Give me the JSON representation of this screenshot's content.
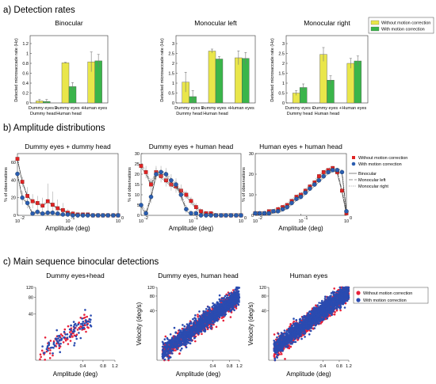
{
  "sections": [
    {
      "label": "a) Detection rates"
    },
    {
      "label": "b) Amplitude distributions"
    },
    {
      "label": "c) Main sequence binocular detections"
    }
  ],
  "chart_data": [
    {
      "type": "bar",
      "panel": "a1",
      "title": "Binocular",
      "ylabel": "Detected microsaccade rate (Hz)",
      "ylim": [
        0,
        1.2
      ],
      "yticks": [
        "0",
        "0.2",
        "0.4",
        "0.6",
        "0.8",
        "1",
        "1.2"
      ],
      "categories": [
        "Dummy eyes +\nDummy head",
        "Dummy eyes +\nHuman head",
        "Human eyes"
      ],
      "series": [
        {
          "name": "Without motion correction",
          "color": "#e9e64a",
          "values": [
            0.04,
            0.81,
            0.83
          ],
          "err": [
            0.03,
            0.01,
            0.2
          ]
        },
        {
          "name": "With motion correction",
          "color": "#3ab54a",
          "values": [
            0.03,
            0.33,
            0.85
          ],
          "err": [
            0.04,
            0.08,
            0.13
          ]
        }
      ]
    },
    {
      "type": "bar",
      "panel": "a2",
      "title": "Monocular left",
      "ylabel": "Detected microsaccade rate (Hz)",
      "ylim": [
        0,
        3
      ],
      "yticks": [
        "0",
        "0.5",
        "1",
        "1.5",
        "2",
        "2.5",
        "3"
      ],
      "categories": [
        "Dummy eyes +\nDummy head",
        "Dummy eyes +\nHuman head",
        "Human eyes"
      ],
      "series": [
        {
          "name": "Without motion correction",
          "color": "#e9e64a",
          "values": [
            1.05,
            2.62,
            2.28
          ],
          "err": [
            0.5,
            0.1,
            0.35
          ]
        },
        {
          "name": "With motion correction",
          "color": "#3ab54a",
          "values": [
            0.32,
            2.22,
            2.25
          ],
          "err": [
            0.3,
            0.12,
            0.3
          ]
        }
      ]
    },
    {
      "type": "bar",
      "panel": "a3",
      "title": "Monocular right",
      "ylabel": "Detected microsaccade rate (Hz)",
      "ylim": [
        0,
        3
      ],
      "yticks": [
        "0",
        "0.5",
        "1",
        "1.5",
        "2",
        "2.5",
        "3"
      ],
      "categories": [
        "Dummy eyes +\nDummy head",
        "Dummy eyes +\nHuman head",
        "Human eyes"
      ],
      "legend": "top-right",
      "series": [
        {
          "name": "Without motion correction",
          "color": "#e9e64a",
          "values": [
            0.5,
            2.45,
            2.0
          ],
          "err": [
            0.12,
            0.35,
            0.25
          ]
        },
        {
          "name": "With motion correction",
          "color": "#3ab54a",
          "values": [
            0.78,
            1.15,
            2.12
          ],
          "err": [
            0.18,
            0.22,
            0.25
          ]
        }
      ]
    },
    {
      "type": "line",
      "panel": "b1",
      "title": "Dummy eyes + dummy head",
      "xscale": "log",
      "xlim": [
        0.01,
        1
      ],
      "xlabel": "Amplitude (deg)",
      "ylabel": "% of observations",
      "ylim": [
        0,
        70
      ],
      "yticks": [
        0,
        20,
        40,
        60
      ],
      "xticklabels": [
        "10",
        "10",
        "10"
      ],
      "xtickexp": [
        "-2",
        "-1",
        "0"
      ],
      "x": [
        0.01,
        0.0125,
        0.0158,
        0.02,
        0.025,
        0.0316,
        0.04,
        0.05,
        0.063,
        0.08,
        0.1,
        0.126,
        0.158,
        0.2,
        0.25,
        0.316,
        0.4,
        0.5,
        0.63,
        0.8,
        1.0
      ],
      "series": [
        {
          "name": "Without motion correction",
          "marker": "square",
          "color": "#e02424",
          "values": [
            64,
            38,
            22,
            16,
            14,
            11,
            16,
            12,
            8,
            6,
            3,
            2,
            1,
            1,
            1,
            0,
            0,
            0,
            0,
            0,
            0
          ],
          "err": [
            4,
            6,
            10,
            8,
            8,
            9,
            20,
            15,
            10,
            8,
            4,
            3,
            2,
            2,
            1,
            1,
            0,
            0,
            0,
            0,
            0
          ]
        },
        {
          "name": "With motion correction",
          "marker": "circle",
          "color": "#2a5db0",
          "values": [
            47,
            20,
            14,
            2,
            4,
            2,
            3,
            3,
            2,
            1,
            1,
            0,
            0,
            0,
            0,
            0,
            0,
            0,
            0,
            0,
            0
          ],
          "err": [
            6,
            8,
            6,
            2,
            3,
            2,
            2,
            2,
            1,
            1,
            1,
            0,
            0,
            0,
            0,
            0,
            0,
            0,
            0,
            0,
            0
          ]
        }
      ]
    },
    {
      "type": "line",
      "panel": "b2",
      "title": "Dummy eyes + human head",
      "xscale": "log",
      "xlim": [
        0.01,
        1
      ],
      "xlabel": "Amplitude (deg)",
      "ylabel": "% of observations",
      "ylim": [
        0,
        30
      ],
      "yticks": [
        0,
        5,
        10,
        15,
        20,
        25,
        30
      ],
      "xticklabels": [
        "10",
        "10",
        "10"
      ],
      "xtickexp": [
        "-2",
        "-1",
        "0"
      ],
      "x": [
        0.01,
        0.0125,
        0.0158,
        0.02,
        0.025,
        0.0316,
        0.04,
        0.05,
        0.063,
        0.08,
        0.1,
        0.126,
        0.158,
        0.2,
        0.25,
        0.316,
        0.4,
        0.5,
        0.63,
        0.8,
        1.0
      ],
      "series": [
        {
          "name": "Without motion correction",
          "marker": "square",
          "color": "#e02424",
          "values": [
            24,
            21,
            15,
            21,
            19,
            17,
            15,
            14,
            12,
            10,
            7,
            4,
            2,
            1,
            1,
            0,
            0,
            0,
            0,
            0,
            0
          ],
          "err": [
            2,
            3,
            3,
            3,
            3,
            3,
            3,
            3,
            3,
            2,
            2,
            2,
            1,
            1,
            1,
            0,
            0,
            0,
            0,
            0,
            0
          ]
        },
        {
          "name": "With motion correction",
          "marker": "circle",
          "color": "#2a5db0",
          "values": [
            5,
            1,
            9,
            20,
            21,
            20,
            17,
            15,
            10,
            3,
            1,
            1,
            0,
            0,
            0,
            0,
            0,
            0,
            0,
            0,
            0
          ],
          "err": [
            2,
            1,
            3,
            3,
            3,
            3,
            3,
            3,
            3,
            2,
            1,
            1,
            0,
            0,
            0,
            0,
            0,
            0,
            0,
            0,
            0
          ]
        }
      ]
    },
    {
      "type": "line",
      "panel": "b3",
      "title": "Human eyes + human head",
      "xscale": "log",
      "xlim": [
        0.01,
        1
      ],
      "xlabel": "Amplitude (deg)",
      "ylabel": "% of observations",
      "ylim": [
        0,
        30
      ],
      "yticks": [
        0,
        10,
        20,
        30
      ],
      "xticklabels": [
        "10",
        "10",
        "10"
      ],
      "xtickexp": [
        "-2",
        "-1",
        "0"
      ],
      "legend": "right",
      "line_styles": [
        {
          "name": "Binocular",
          "dash": ""
        },
        {
          "name": "Monocular left",
          "dash": "5,2"
        },
        {
          "name": "Monocular right",
          "dash": "1,1.5"
        }
      ],
      "x": [
        0.01,
        0.0125,
        0.0158,
        0.02,
        0.025,
        0.0316,
        0.04,
        0.05,
        0.063,
        0.08,
        0.1,
        0.126,
        0.158,
        0.2,
        0.25,
        0.316,
        0.4,
        0.5,
        0.63,
        0.8,
        1.0
      ],
      "series": [
        {
          "name": "Without motion correction",
          "marker": "square",
          "color": "#e02424",
          "values": [
            1,
            1,
            1,
            2,
            2,
            3,
            4,
            5,
            7,
            9,
            10,
            12,
            14,
            16,
            19,
            21,
            22,
            23,
            21,
            12,
            1
          ],
          "err": [
            0,
            0,
            0,
            0,
            0,
            0,
            0,
            0,
            0,
            0,
            0,
            0,
            0,
            0,
            0,
            0,
            0,
            0,
            0,
            0,
            0
          ]
        },
        {
          "name": "With motion correction",
          "marker": "circle",
          "color": "#2a5db0",
          "values": [
            1,
            1,
            1,
            1,
            2,
            2,
            3,
            4,
            6,
            8,
            9,
            11,
            13,
            15,
            17,
            19,
            21,
            22,
            22,
            21,
            2
          ],
          "err": [
            0,
            0,
            0,
            0,
            0,
            0,
            0,
            0,
            0,
            0,
            0,
            0,
            0,
            0,
            0,
            0,
            0,
            0,
            0,
            0,
            0
          ]
        }
      ]
    },
    {
      "type": "scatter",
      "panel": "c1",
      "title": "Dummy eyes+head",
      "xscale": "log",
      "yscale": "log",
      "xlabel": "Amplitude (deg)",
      "ylabel": "",
      "xlim": [
        0.08,
        1.2
      ],
      "ylim": [
        6,
        120
      ],
      "xticklabels": [
        "0.4",
        "0.8",
        "1.2"
      ],
      "yticklabels": [
        "120",
        "80",
        "40"
      ],
      "series": [
        {
          "name": "Without motion correction",
          "color": "#e8213a",
          "n": 90,
          "ampRange": [
            0.09,
            0.5
          ],
          "slope": 0.85,
          "v0": 55
        },
        {
          "name": "With motion correction",
          "color": "#2a4bb0",
          "n": 90,
          "ampRange": [
            0.1,
            0.55
          ],
          "slope": 0.85,
          "v0": 58
        }
      ]
    },
    {
      "type": "scatter",
      "panel": "c2",
      "title": "Dummy eyes, human head",
      "xscale": "log",
      "yscale": "log",
      "xlabel": "Amplitude (deg)",
      "ylabel": "Velocity (deg/s)",
      "xlim": [
        0.04,
        1.2
      ],
      "ylim": [
        4,
        120
      ],
      "xticklabels": [
        "0.4",
        "0.8",
        "1.2"
      ],
      "yticklabels": [
        "120",
        "80",
        "40"
      ],
      "series": [
        {
          "name": "Without motion correction",
          "color": "#e8213a",
          "n": 1100,
          "ampRange": [
            0.05,
            1.1
          ],
          "slope": 0.85,
          "v0": 70
        },
        {
          "name": "With motion correction",
          "color": "#2a4bb0",
          "n": 1400,
          "ampRange": [
            0.05,
            1.2
          ],
          "slope": 0.85,
          "v0": 72
        }
      ]
    },
    {
      "type": "scatter",
      "panel": "c3",
      "title": "Human eyes",
      "xscale": "log",
      "yscale": "log",
      "xlabel": "Amplitude (deg)",
      "ylabel": "Velocity (deg/s)",
      "xlim": [
        0.04,
        1.2
      ],
      "ylim": [
        4,
        120
      ],
      "legend": "right",
      "xticklabels": [
        "0.4",
        "0.8",
        "1.2"
      ],
      "yticklabels": [
        "120",
        "80",
        "40"
      ],
      "series": [
        {
          "name": "Without motion correction",
          "color": "#e8213a",
          "n": 1300,
          "ampRange": [
            0.05,
            1.2
          ],
          "slope": 0.85,
          "v0": 85
        },
        {
          "name": "With motion correction",
          "color": "#2a4bb0",
          "n": 1700,
          "ampRange": [
            0.05,
            1.2
          ],
          "slope": 0.85,
          "v0": 88
        }
      ]
    }
  ]
}
